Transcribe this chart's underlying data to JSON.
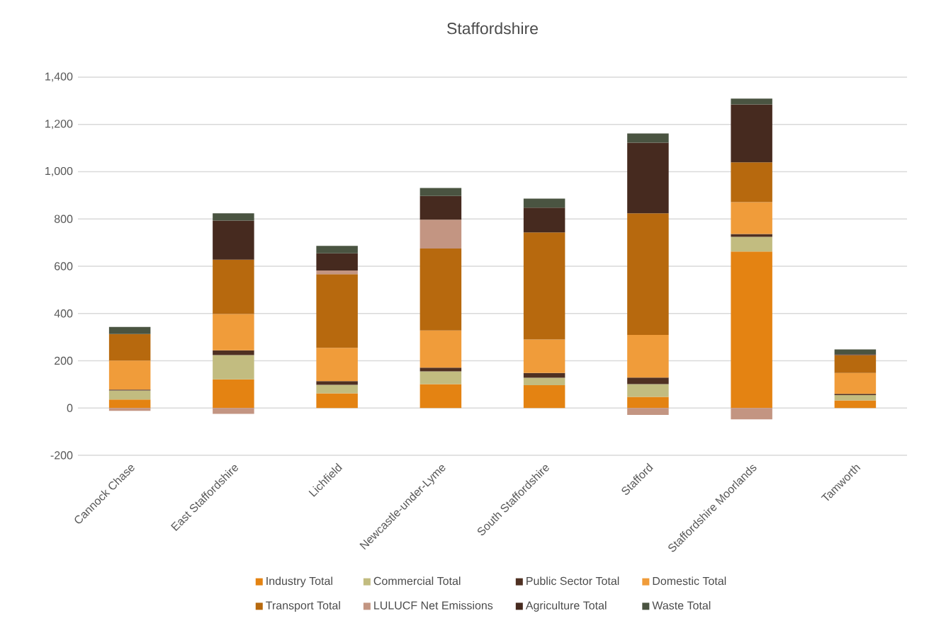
{
  "chart_data": {
    "type": "bar",
    "stacked": true,
    "title": "Staffordshire",
    "categories": [
      "Cannock Chase",
      "East Staffordshire",
      "Lichfield",
      "Newcastle-under-Lyme",
      "South Staffordshire",
      "Stafford",
      "Staffordshire Moorlands",
      "Tamworth"
    ],
    "series": [
      {
        "name": "Industry Total",
        "color": "#e48312",
        "values": [
          36,
          121,
          62,
          101,
          97,
          47,
          662,
          32
        ]
      },
      {
        "name": "Commercial Total",
        "color": "#c2bc80",
        "values": [
          38,
          103,
          36,
          54,
          31,
          54,
          62,
          23
        ]
      },
      {
        "name": "Public Sector Total",
        "color": "#4f3022",
        "values": [
          4,
          20,
          16,
          16,
          20,
          28,
          12,
          5
        ]
      },
      {
        "name": "Domestic Total",
        "color": "#f09c3a",
        "values": [
          123,
          154,
          141,
          157,
          142,
          180,
          135,
          88
        ]
      },
      {
        "name": "Transport Total",
        "color": "#b7690e",
        "values": [
          112,
          230,
          311,
          347,
          453,
          515,
          169,
          76
        ]
      },
      {
        "name": "LULUCF Net Emissions",
        "color": "#c39582",
        "values": [
          -12,
          -25,
          16,
          122,
          0,
          -29,
          -48,
          0
        ]
      },
      {
        "name": "Agriculture Total",
        "color": "#462a1f",
        "values": [
          0,
          165,
          73,
          100,
          105,
          299,
          245,
          4
        ]
      },
      {
        "name": "Waste Total",
        "color": "#4a5441",
        "values": [
          30,
          31,
          31,
          34,
          38,
          39,
          24,
          20
        ]
      }
    ],
    "ylim": [
      -200,
      1400
    ],
    "yticks": [
      -200,
      0,
      200,
      400,
      600,
      800,
      {
        "value": 1000,
        "label": "1,000"
      },
      {
        "value": 1200,
        "label": "1,200"
      },
      {
        "value": 1400,
        "label": "1,400"
      }
    ],
    "grid": "y",
    "legend": "bottom"
  }
}
